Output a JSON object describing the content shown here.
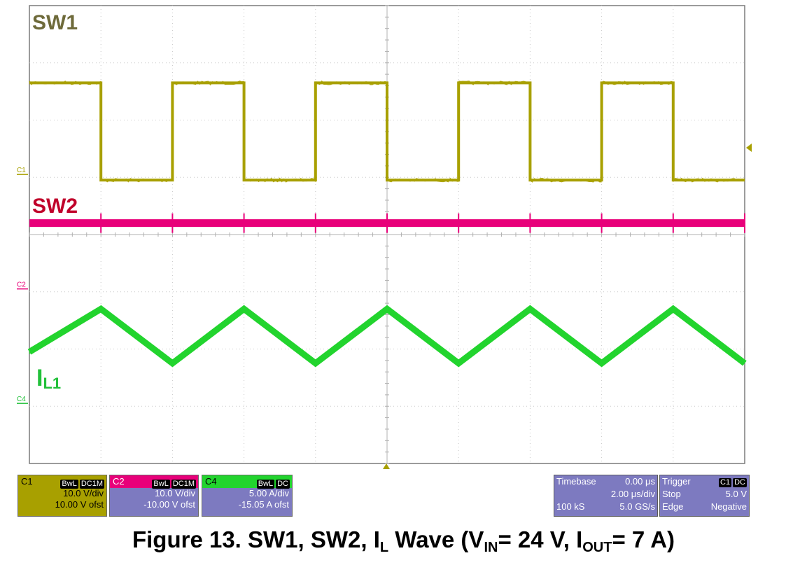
{
  "chart_data": {
    "type": "line",
    "title": "",
    "xlabel": "",
    "ylabel": "",
    "x_divisions": 10,
    "y_divisions": 8,
    "grid": true,
    "channel_markers": [
      "C1",
      "C2",
      "C4"
    ],
    "series": [
      {
        "name": "SW1",
        "color": "#a8a000",
        "x_us": [
          0,
          1.0,
          1.0,
          2.0,
          2.0,
          3.0,
          3.0,
          4.0,
          4.0,
          5.0,
          5.0,
          6.0,
          6.0,
          7.0,
          7.0,
          8.0,
          8.0,
          9.0,
          9.0,
          10.0
        ],
        "y_div": [
          6.65,
          6.65,
          4.95,
          4.95,
          6.65,
          6.65,
          4.95,
          4.95,
          6.65,
          6.65,
          4.95,
          4.95,
          6.65,
          6.65,
          4.95,
          4.95,
          6.65,
          6.65,
          4.95,
          4.95
        ]
      },
      {
        "name": "SW2",
        "color": "#e8007a",
        "x_us": [
          0,
          10.0
        ],
        "y_div": [
          4.2,
          4.2
        ]
      },
      {
        "name": "IL1",
        "color": "#22d42e",
        "x_us": [
          0,
          1.0,
          2.0,
          3.0,
          4.0,
          5.0,
          6.0,
          7.0,
          8.0,
          9.0,
          10.0
        ],
        "y_div": [
          1.95,
          2.7,
          1.75,
          2.7,
          1.75,
          2.7,
          1.75,
          2.7,
          1.75,
          2.7,
          1.75
        ]
      }
    ]
  },
  "trace_labels": {
    "sw1": "SW1",
    "sw2": "SW2",
    "il_main": "I",
    "il_sub": "L1"
  },
  "channels": {
    "c1": {
      "name": "C1",
      "tag1": "BwL",
      "tag2": "DC1M",
      "scale": "10.0 V/div",
      "offset": "10.00 V ofst",
      "color": "#a8a000"
    },
    "c2": {
      "name": "C2",
      "tag1": "BwL",
      "tag2": "DC1M",
      "scale": "10.0 V/div",
      "offset": "-10.00 V ofst",
      "color": "#e8007a"
    },
    "c4": {
      "name": "C4",
      "tag1": "BwL",
      "tag2": "DC",
      "scale": "5.00 A/div",
      "offset": "-15.05 A ofst",
      "color": "#22d42e"
    }
  },
  "timebase": {
    "label": "Timebase",
    "delay": "0.00 μs",
    "scale": "2.00 μs/div",
    "samples": "100 kS",
    "rate": "5.0 GS/s"
  },
  "trigger": {
    "label": "Trigger",
    "tag1": "C1",
    "tag2": "DC",
    "mode": "Stop",
    "level": "5.0 V",
    "type": "Edge",
    "slope": "Negative"
  },
  "caption": {
    "p1": "Figure 13. SW1, SW2, I",
    "s1": "L",
    "p2": " Wave (V",
    "s2": "IN",
    "p3": "= 24 V, I",
    "s3": "OUT",
    "p4": "= 7 A)"
  }
}
